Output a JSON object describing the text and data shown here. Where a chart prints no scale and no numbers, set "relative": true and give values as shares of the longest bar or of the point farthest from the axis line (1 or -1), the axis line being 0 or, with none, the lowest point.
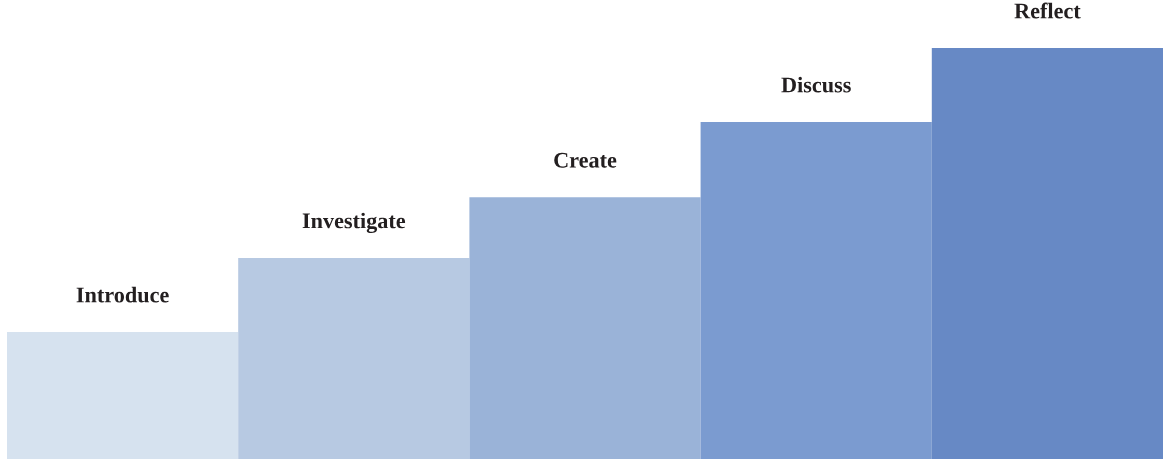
{
  "chart_data": {
    "type": "bar",
    "relative": true,
    "categories": [
      "Introduce",
      "Investigate",
      "Create",
      "Discuss",
      "Reflect"
    ],
    "values": [
      0.309,
      0.489,
      0.637,
      0.82,
      1
    ],
    "colors": [
      "#d6e2ef",
      "#b7c9e2",
      "#9ab3d8",
      "#7b9bd0",
      "#6789c5"
    ]
  }
}
